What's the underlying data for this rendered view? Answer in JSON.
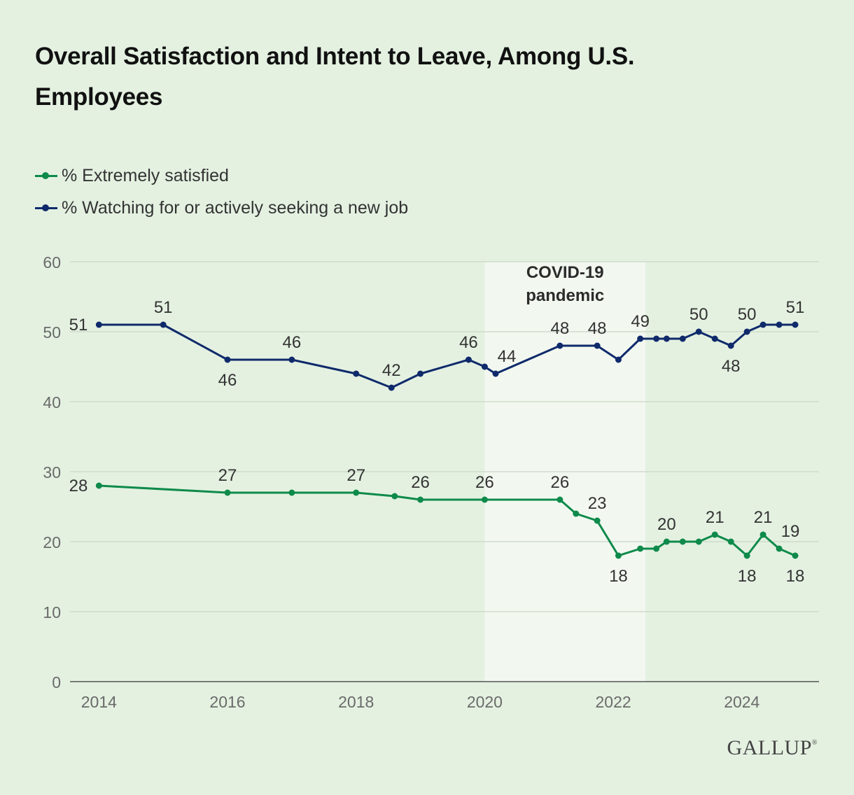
{
  "title": "Overall Satisfaction and Intent to Leave, Among U.S. Employees",
  "brand": "GALLUP",
  "brand_mark": "®",
  "colors": {
    "satisfied": "#0e8a4a",
    "seeking": "#0f2a6b",
    "shade": "#f2f8f0",
    "grid": "#c9d6c6"
  },
  "chart_data": {
    "type": "line",
    "title": "Overall Satisfaction and Intent to Leave, Among U.S. Employees",
    "xlabel": "",
    "ylabel": "",
    "xlim": [
      2013.55,
      2025.2
    ],
    "ylim": [
      0,
      60
    ],
    "yticks": [
      0,
      10,
      20,
      30,
      40,
      50,
      60
    ],
    "xticks": [
      2014,
      2016,
      2018,
      2020,
      2022,
      2024
    ],
    "grid": true,
    "legend_position": "top-left",
    "shaded_region": {
      "x_start": 2020.0,
      "x_end": 2022.5,
      "label_lines": [
        "COVID-19",
        "pandemic"
      ]
    },
    "series": [
      {
        "name": "% Extremely satisfied",
        "color": "#0e8a4a",
        "x": [
          2014.0,
          2016.0,
          2017.0,
          2018.0,
          2018.6,
          2019.0,
          2020.0,
          2021.17,
          2021.42,
          2021.75,
          2022.08,
          2022.42,
          2022.67,
          2022.83,
          2023.08,
          2023.33,
          2023.58,
          2023.83,
          2024.08,
          2024.33,
          2024.58,
          2024.83
        ],
        "values": [
          28,
          27,
          27,
          27,
          26.5,
          26,
          26,
          26,
          24,
          23,
          18,
          19,
          19,
          20,
          20,
          20,
          21,
          20,
          18,
          21,
          19,
          18
        ],
        "labels": [
          {
            "i": 0,
            "text": "28",
            "pos": "left"
          },
          {
            "i": 1,
            "text": "27",
            "pos": "above"
          },
          {
            "i": 3,
            "text": "27",
            "pos": "above"
          },
          {
            "i": 5,
            "text": "26",
            "pos": "above"
          },
          {
            "i": 6,
            "text": "26",
            "pos": "above"
          },
          {
            "i": 7,
            "text": "26",
            "pos": "above"
          },
          {
            "i": 9,
            "text": "23",
            "pos": "above"
          },
          {
            "i": 10,
            "text": "18",
            "pos": "below"
          },
          {
            "i": 13,
            "text": "20",
            "pos": "above"
          },
          {
            "i": 16,
            "text": "21",
            "pos": "above"
          },
          {
            "i": 18,
            "text": "18",
            "pos": "below"
          },
          {
            "i": 19,
            "text": "21",
            "pos": "above"
          },
          {
            "i": 20,
            "text": "19",
            "pos": "above-right"
          },
          {
            "i": 21,
            "text": "18",
            "pos": "below"
          }
        ]
      },
      {
        "name": "% Watching for or actively seeking a new job",
        "color": "#0f2a6b",
        "x": [
          2014.0,
          2015.0,
          2016.0,
          2017.0,
          2018.0,
          2018.55,
          2019.0,
          2019.75,
          2020.0,
          2020.17,
          2021.17,
          2021.75,
          2022.08,
          2022.42,
          2022.67,
          2022.83,
          2023.08,
          2023.33,
          2023.58,
          2023.83,
          2024.08,
          2024.33,
          2024.58,
          2024.83
        ],
        "values": [
          51,
          51,
          46,
          46,
          44,
          42,
          44,
          46,
          45,
          44,
          48,
          48,
          46,
          49,
          49,
          49,
          49,
          50,
          49,
          48,
          50,
          51,
          51,
          51
        ],
        "labels": [
          {
            "i": 0,
            "text": "51",
            "pos": "left"
          },
          {
            "i": 1,
            "text": "51",
            "pos": "above"
          },
          {
            "i": 2,
            "text": "46",
            "pos": "below"
          },
          {
            "i": 3,
            "text": "46",
            "pos": "above"
          },
          {
            "i": 5,
            "text": "42",
            "pos": "above"
          },
          {
            "i": 7,
            "text": "46",
            "pos": "above"
          },
          {
            "i": 9,
            "text": "44",
            "pos": "above-right"
          },
          {
            "i": 10,
            "text": "48",
            "pos": "above"
          },
          {
            "i": 11,
            "text": "48",
            "pos": "above"
          },
          {
            "i": 13,
            "text": "49",
            "pos": "above"
          },
          {
            "i": 17,
            "text": "50",
            "pos": "above"
          },
          {
            "i": 19,
            "text": "48",
            "pos": "below"
          },
          {
            "i": 20,
            "text": "50",
            "pos": "above"
          },
          {
            "i": 23,
            "text": "51",
            "pos": "above"
          }
        ]
      }
    ]
  }
}
